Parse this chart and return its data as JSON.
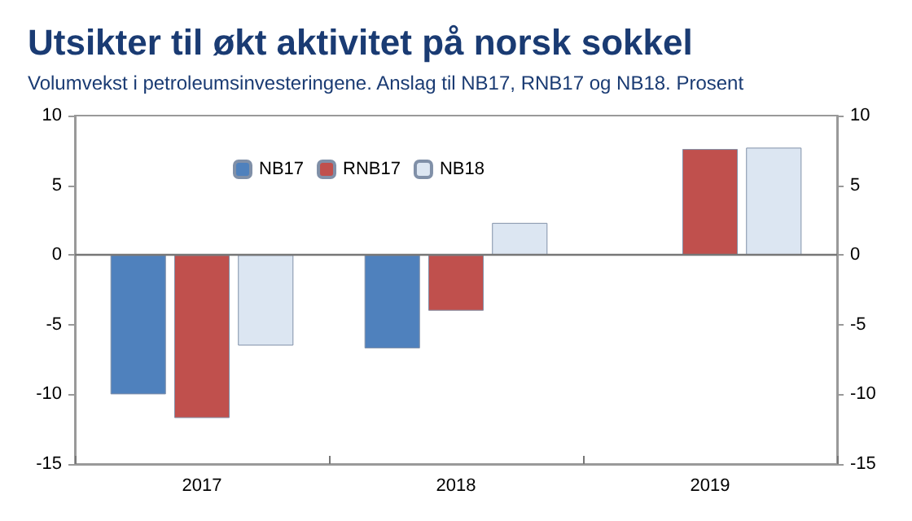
{
  "chart_data": {
    "type": "bar",
    "title": "Utsikter til økt aktivitet på norsk sokkel",
    "subtitle": "Volumvekst i petroleumsinvesteringene. Anslag til NB17, RNB17 og NB18. Prosent",
    "categories": [
      "2017",
      "2018",
      "2019"
    ],
    "series": [
      {
        "name": "NB17",
        "color": "#4f81bd",
        "values": [
          -10,
          -6.7,
          null
        ]
      },
      {
        "name": "RNB17",
        "color": "#c0504d",
        "values": [
          -11.7,
          -4,
          7.6
        ]
      },
      {
        "name": "NB18",
        "color": "#dce6f2",
        "values": [
          -6.5,
          2.3,
          7.7
        ]
      }
    ],
    "ylim": [
      -15,
      10
    ],
    "yticks": [
      -15,
      -10,
      -5,
      0,
      5,
      10
    ],
    "y2lim": [
      -15,
      10
    ],
    "y2ticks": [
      -15,
      -10,
      -5,
      0,
      5,
      10
    ],
    "ref_lines": [
      {
        "axis": "y",
        "value": 0,
        "color": "#777777"
      }
    ],
    "grid": false,
    "legend": "top left"
  }
}
